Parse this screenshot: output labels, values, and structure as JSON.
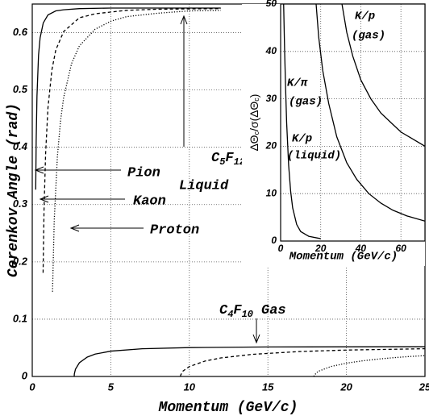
{
  "chart_data": [
    {
      "type": "line",
      "xlabel": "Momentum (GeV/c)",
      "ylabel": "Cerenkov Angle (rad)",
      "xlim": [
        0,
        25
      ],
      "ylim": [
        0,
        0.65
      ],
      "xticks": [
        0,
        5,
        10,
        15,
        20,
        25
      ],
      "yticks": [
        0,
        0.1,
        0.2,
        0.3,
        0.4,
        0.5,
        0.6
      ],
      "grid": true,
      "series": [
        {
          "color": "#000000",
          "style": "solid",
          "x": [
            0.22,
            0.25,
            0.3,
            0.4,
            0.5,
            0.7,
            1,
            1.5,
            2,
            3,
            5,
            12
          ],
          "values": [
            0.326,
            0.411,
            0.489,
            0.561,
            0.591,
            0.617,
            0.631,
            0.638,
            0.64,
            0.642,
            0.643,
            0.643
          ]
        },
        {
          "color": "#000000",
          "style": "dashed",
          "x": [
            0.69,
            0.75,
            0.85,
            1,
            1.25,
            1.5,
            2,
            3,
            4,
            6,
            8,
            12
          ],
          "values": [
            0.181,
            0.292,
            0.389,
            0.469,
            0.535,
            0.57,
            0.602,
            0.626,
            0.633,
            0.639,
            0.641,
            0.642
          ]
        },
        {
          "color": "#000000",
          "style": "dotted",
          "x": [
            1.29,
            1.4,
            1.6,
            1.8,
            2,
            2.5,
            3,
            4,
            5,
            6,
            8,
            10,
            12
          ],
          "values": [
            0.148,
            0.273,
            0.384,
            0.446,
            0.487,
            0.546,
            0.577,
            0.606,
            0.62,
            0.628,
            0.634,
            0.638,
            0.639
          ]
        },
        {
          "color": "#000000",
          "style": "solid",
          "x": [
            2.67,
            2.68,
            2.75,
            3,
            3.5,
            4,
            5,
            7,
            10,
            15,
            20,
            25
          ],
          "values": [
            0,
            0.0047,
            0.0126,
            0.0239,
            0.0338,
            0.039,
            0.0442,
            0.0484,
            0.0504,
            0.0515,
            0.0518,
            0.052
          ]
        },
        {
          "color": "#000000",
          "style": "dashed",
          "x": [
            9.44,
            9.45,
            9.6,
            10,
            11,
            12,
            14,
            17,
            20,
            25
          ],
          "values": [
            0,
            0.0026,
            0.0096,
            0.0173,
            0.0269,
            0.0323,
            0.0386,
            0.0435,
            0.0461,
            0.0484
          ]
        },
        {
          "color": "#000000",
          "style": "dotted",
          "x": [
            17.93,
            17.95,
            18.2,
            19,
            20,
            21,
            22,
            23,
            24,
            25
          ],
          "values": [
            0,
            0.0022,
            0.0089,
            0.0173,
            0.0232,
            0.0272,
            0.0303,
            0.0328,
            0.0348,
            0.0364
          ]
        }
      ],
      "annotations": {
        "pion": "Pion",
        "kaon": "Kaon",
        "proton": "Proton",
        "liquid": {
          "formula": [
            "C",
            "5",
            "F",
            "12"
          ],
          "phase": "Liquid"
        },
        "gas": {
          "formula": [
            "C",
            "4",
            "F",
            "10"
          ],
          "phase": "Gas"
        }
      }
    },
    {
      "type": "line",
      "xlabel": "Momentum (GeV/c)",
      "ylabel": [
        "ΔΘ",
        "c",
        "/σ(ΔΘ",
        "c",
        ")"
      ],
      "xlim": [
        0,
        72
      ],
      "ylim": [
        0,
        50
      ],
      "xticks": [
        0,
        20,
        40,
        60
      ],
      "yticks": [
        0,
        10,
        20,
        30,
        40,
        50
      ],
      "grid": true,
      "series": [
        {
          "color": "#000000",
          "style": "solid",
          "x": [
            30.6,
            33,
            36,
            40,
            45,
            50,
            55,
            60,
            66,
            72
          ],
          "values": [
            50,
            44,
            39,
            34,
            30,
            27,
            25,
            23,
            21.5,
            20
          ]
        },
        {
          "color": "#000000",
          "style": "solid",
          "x": [
            17.7,
            19,
            21,
            24,
            28,
            33,
            38,
            44,
            50,
            56,
            63,
            72
          ],
          "values": [
            50,
            43,
            36,
            29,
            22,
            16.5,
            13,
            10,
            8,
            6.5,
            5.3,
            4.2
          ]
        },
        {
          "color": "#000000",
          "style": "solid",
          "x": [
            1.5,
            2,
            2.5,
            3,
            4,
            5,
            6,
            8,
            10,
            14,
            20
          ],
          "values": [
            50,
            40,
            32,
            25,
            16,
            10.5,
            7,
            3.5,
            2,
            1,
            0.5
          ]
        }
      ],
      "annotations": [
        {
          "top": "K/p",
          "bottom": "(gas)"
        },
        {
          "top": "K/π",
          "bottom": "(gas)"
        },
        {
          "top": "K/p",
          "bottom": "(liquid)"
        }
      ]
    }
  ]
}
